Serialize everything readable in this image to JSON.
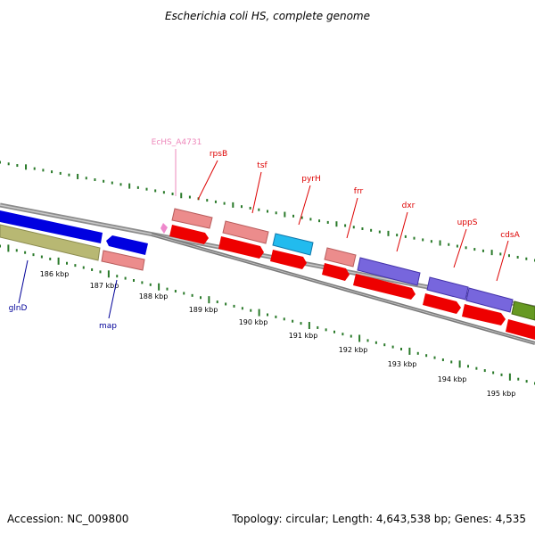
{
  "title": "Escherichia coli HS, complete genome",
  "footer": {
    "accession": "Accession: NC_009800",
    "summary": "Topology: circular; Length: 4,643,538 bp; Genes: 4,535"
  },
  "colors": {
    "backbone": "#8c8c8c",
    "tick": "#2a7a2a",
    "label_red": "#dd0000",
    "label_blue": "#000099",
    "label_pink": "#ee88bb"
  },
  "ticks": [
    "186 kbp",
    "187 kbp",
    "188 kbp",
    "189 kbp",
    "190 kbp",
    "191 kbp",
    "192 kbp",
    "193 kbp",
    "194 kbp",
    "195 kbp"
  ],
  "genes": [
    {
      "label": "glnD",
      "color": "blue"
    },
    {
      "label": "map",
      "color": "blue"
    },
    {
      "label": "EcHS_A4731",
      "color": "pink"
    },
    {
      "label": "rpsB",
      "color": "red"
    },
    {
      "label": "tsf",
      "color": "red"
    },
    {
      "label": "pyrH",
      "color": "red"
    },
    {
      "label": "frr",
      "color": "red"
    },
    {
      "label": "dxr",
      "color": "red"
    },
    {
      "label": "uppS",
      "color": "red"
    },
    {
      "label": "cdsA",
      "color": "red"
    }
  ]
}
